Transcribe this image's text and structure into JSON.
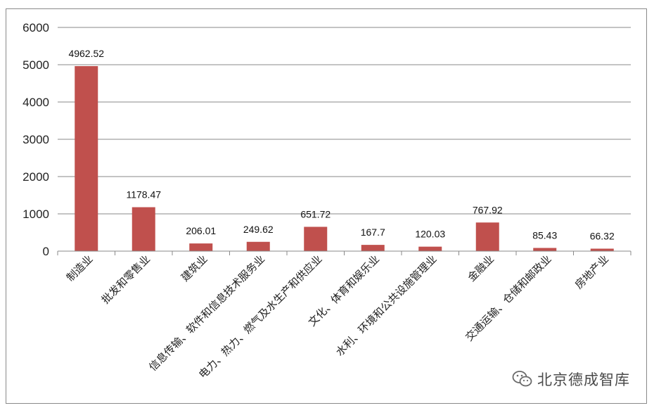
{
  "chart_data": {
    "type": "bar",
    "categories": [
      "制造业",
      "批发和零售业",
      "建筑业",
      "信息传输、软件和信息技术服务业",
      "电力、热力、燃气及水生产和供应业",
      "文化、体育和娱乐业",
      "水利、环境和公共设施管理业",
      "金融业",
      "交通运输、仓储和邮政业",
      "房地产业"
    ],
    "values": [
      4962.52,
      1178.47,
      206.01,
      249.62,
      651.72,
      167.7,
      120.03,
      767.92,
      85.43,
      66.32
    ],
    "value_labels": [
      "4962.52",
      "1178.47",
      "206.01",
      "249.62",
      "651.72",
      "167.7",
      "120.03",
      "767.92",
      "85.43",
      "66.32"
    ],
    "ylim": [
      0,
      6000
    ],
    "yticks": [
      0,
      1000,
      2000,
      3000,
      4000,
      5000,
      6000
    ],
    "grid": true,
    "legend": "none",
    "bar_color": "#c0504d",
    "grid_color": "#888888"
  },
  "watermark": {
    "icon": "wechat-icon",
    "text": "北京德成智库"
  }
}
